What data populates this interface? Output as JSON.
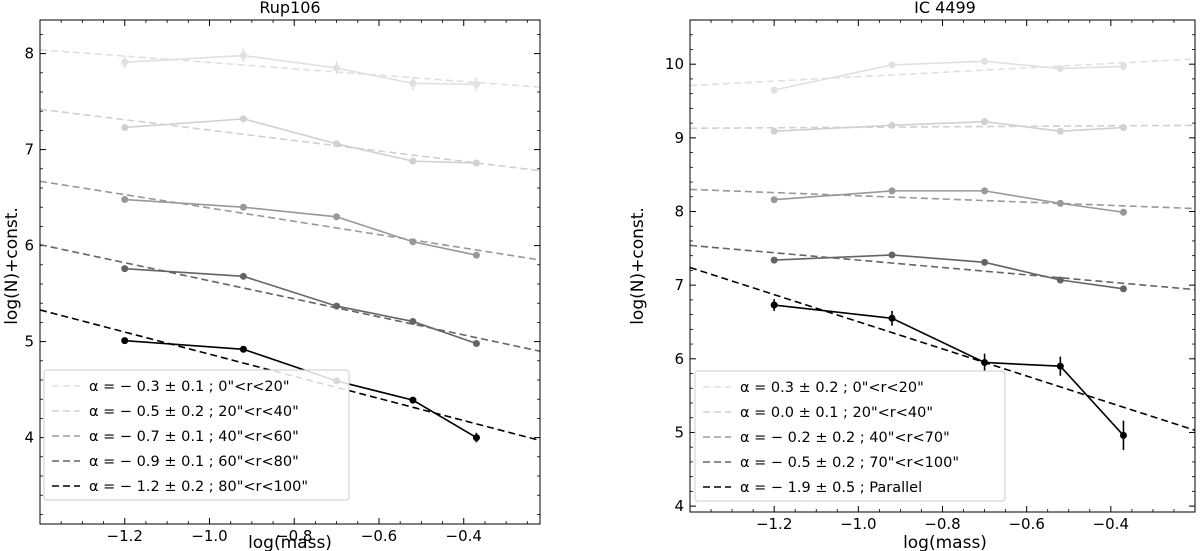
{
  "chart_data": [
    {
      "type": "line",
      "title": "Rup106",
      "xlabel": "log(mass)",
      "ylabel": "log(N)+const.",
      "xlim": [
        -1.4,
        -0.22
      ],
      "ylim": [
        3.1,
        8.35
      ],
      "xticks": [
        -1.2,
        -1.0,
        -0.8,
        -0.6,
        -0.4
      ],
      "xtick_labels": [
        "−1.2",
        "−1.0",
        "−0.8",
        "−0.6",
        "−0.4"
      ],
      "yticks": [
        4,
        5,
        6,
        7,
        8
      ],
      "ytick_labels": [
        "4",
        "5",
        "6",
        "7",
        "8"
      ],
      "legend_position": "bottom-left",
      "x": [
        -1.2,
        -0.92,
        -0.7,
        -0.52,
        -0.37
      ],
      "series": [
        {
          "name": "α = − 0.3 ± 0.1 ; 0\"<r<20\"",
          "color": "#e0e0e0",
          "values": [
            7.91,
            7.98,
            7.85,
            7.69,
            7.68
          ],
          "errors": [
            0.06,
            0.07,
            0.07,
            0.07,
            0.07
          ],
          "fit": [
            8.04,
            7.65
          ]
        },
        {
          "name": "α = − 0.5 ± 0.2 ; 20\"<r<40\"",
          "color": "#d0d0d0",
          "values": [
            7.23,
            7.32,
            7.06,
            6.88,
            6.86
          ],
          "errors": [
            0.03,
            0.03,
            0.03,
            0.03,
            0.03
          ],
          "fit": [
            7.42,
            6.78
          ]
        },
        {
          "name": "α = − 0.7 ± 0.1 ; 40\"<r<60\"",
          "color": "#989898",
          "values": [
            6.48,
            6.4,
            6.3,
            6.04,
            5.9
          ],
          "errors": [
            0.02,
            0.02,
            0.02,
            0.02,
            0.02
          ],
          "fit": [
            6.67,
            5.85
          ]
        },
        {
          "name": "α = − 0.9 ± 0.1 ; 60\"<r<80\"",
          "color": "#646464",
          "values": [
            5.76,
            5.68,
            5.37,
            5.21,
            4.98
          ],
          "errors": [
            0.02,
            0.02,
            0.02,
            0.02,
            0.02
          ],
          "fit": [
            6.01,
            4.9
          ]
        },
        {
          "name": "α = − 1.2 ± 0.2 ; 80\"<r<100\"",
          "color": "#000000",
          "values": [
            5.01,
            4.92,
            4.59,
            4.39,
            4.0
          ],
          "errors": [
            0.02,
            0.02,
            0.03,
            0.03,
            0.05
          ],
          "fit": [
            5.33,
            3.97
          ]
        }
      ]
    },
    {
      "type": "line",
      "title": "IC 4499",
      "xlabel": "log(mass)",
      "ylabel": "log(N)+const.",
      "xlim": [
        -1.4,
        -0.2
      ],
      "ylim": [
        3.92,
        10.6
      ],
      "xticks": [
        -1.2,
        -1.0,
        -0.8,
        -0.6,
        -0.4
      ],
      "xtick_labels": [
        "−1.2",
        "−1.0",
        "−0.8",
        "−0.6",
        "−0.4"
      ],
      "yticks": [
        4,
        5,
        6,
        7,
        8,
        9,
        10
      ],
      "ytick_labels": [
        "4",
        "5",
        "6",
        "7",
        "8",
        "9",
        "10"
      ],
      "legend_position": "bottom-left",
      "x": [
        -1.2,
        -0.92,
        -0.7,
        -0.52,
        -0.37
      ],
      "series": [
        {
          "name": "α = 0.3 ± 0.2 ; 0\"<r<20\"",
          "color": "#e0e0e0",
          "values": [
            9.65,
            9.99,
            10.04,
            9.94,
            9.97
          ],
          "errors": [
            0.03,
            0.03,
            0.03,
            0.03,
            0.03
          ],
          "fit": [
            9.71,
            10.07
          ]
        },
        {
          "name": "α = 0.0 ± 0.1 ; 20\"<r<40\"",
          "color": "#d0d0d0",
          "values": [
            9.09,
            9.17,
            9.22,
            9.09,
            9.14
          ],
          "errors": [
            0.02,
            0.02,
            0.02,
            0.02,
            0.02
          ],
          "fit": [
            9.13,
            9.17
          ]
        },
        {
          "name": "α = − 0.2 ± 0.2 ; 40\"<r<70\"",
          "color": "#989898",
          "values": [
            8.16,
            8.28,
            8.28,
            8.11,
            7.99
          ],
          "errors": [
            0.02,
            0.02,
            0.02,
            0.02,
            0.02
          ],
          "fit": [
            8.3,
            8.04
          ]
        },
        {
          "name": "α = − 0.5 ± 0.2 ; 70\"<r<100\"",
          "color": "#646464",
          "values": [
            7.34,
            7.41,
            7.31,
            7.07,
            6.95
          ],
          "errors": [
            0.02,
            0.02,
            0.02,
            0.02,
            0.02
          ],
          "fit": [
            7.54,
            6.94
          ]
        },
        {
          "name": "α = − 1.9 ± 0.5 ; Parallel",
          "color": "#000000",
          "values": [
            6.73,
            6.55,
            5.95,
            5.9,
            4.96
          ],
          "errors": [
            0.08,
            0.1,
            0.12,
            0.13,
            0.2
          ],
          "fit": [
            7.24,
            5.03
          ]
        }
      ]
    }
  ]
}
